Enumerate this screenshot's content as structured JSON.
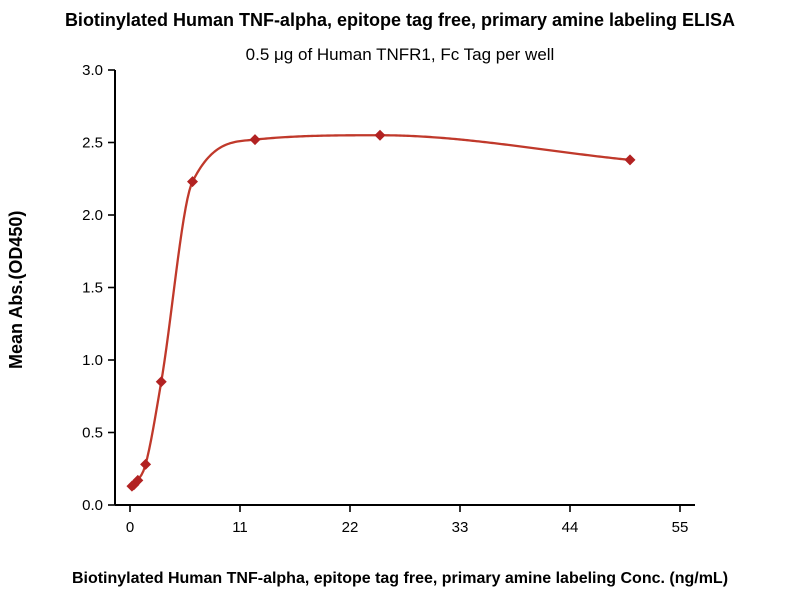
{
  "chart_data": {
    "type": "scatter",
    "title": "Biotinylated Human TNF-alpha, epitope tag free, primary amine labeling ELISA",
    "subtitle": "0.5 μg of Human TNFR1, Fc Tag per well",
    "xlabel": "Biotinylated Human TNF-alpha, epitope tag free, primary amine labeling Conc. (ng/mL)",
    "ylabel": "Mean Abs.(OD450)",
    "x": [
      0.195,
      0.39,
      0.78,
      1.56,
      3.125,
      6.25,
      12.5,
      25,
      50
    ],
    "y": [
      0.13,
      0.14,
      0.17,
      0.28,
      0.85,
      2.23,
      2.52,
      2.55,
      2.38
    ],
    "xlim": [
      -1.5,
      56.5
    ],
    "ylim": [
      0,
      3
    ],
    "x_ticks": [
      0,
      11,
      22,
      33,
      44,
      55
    ],
    "y_ticks": [
      0.0,
      0.5,
      1.0,
      1.5,
      2.0,
      2.5,
      3.0
    ],
    "grid": false,
    "legend": "none",
    "marker": "diamond",
    "marker_color": "#b22222",
    "line_color": "#c0392b",
    "axis_color": "#000000",
    "curve": "4PL sigmoidal fit through data points"
  }
}
